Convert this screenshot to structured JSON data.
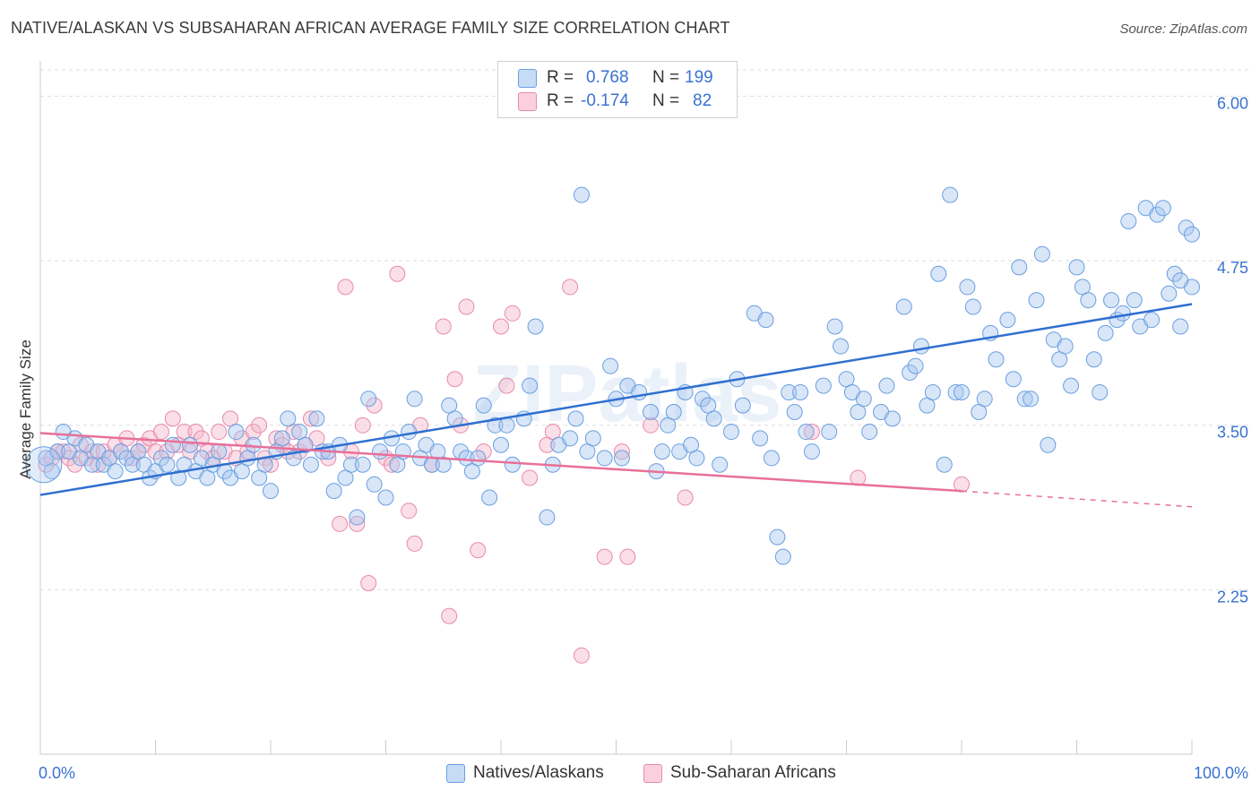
{
  "title": "NATIVE/ALASKAN VS SUBSAHARAN AFRICAN AVERAGE FAMILY SIZE CORRELATION CHART",
  "source": "Source: ZipAtlas.com",
  "watermark": "ZIPatlas",
  "legend": {
    "r_label": "R =",
    "n_label": "N =",
    "rows": [
      {
        "name": "Natives/Alaskans",
        "r": "0.768",
        "n": "199",
        "color": "#a8c8f0"
      },
      {
        "name": "Sub-Saharan Africans",
        "r": "-0.174",
        "n": "82",
        "color": "#f5b8cc"
      }
    ]
  },
  "colors": {
    "blue_fill": "#a8c8f0",
    "blue_stroke": "#6a9fe0",
    "blue_line": "#2f6fd0",
    "pink_fill": "#f5b8cc",
    "pink_stroke": "#e88aaa",
    "pink_line": "#e8709a",
    "axis_text": "#3a72d0",
    "grid": "#dddddd"
  },
  "chart_data": {
    "type": "scatter",
    "title": "NATIVE/ALASKAN VS SUBSAHARAN AFRICAN AVERAGE FAMILY SIZE CORRELATION CHART",
    "xlabel": "",
    "ylabel": "Average Family Size",
    "xlim": [
      0,
      100
    ],
    "ylim": [
      1.0,
      6.2
    ],
    "x_tick_labels": [
      "0.0%",
      "100.0%"
    ],
    "y_ticks": [
      2.25,
      3.5,
      4.75,
      6.0
    ],
    "y_tick_labels": [
      "2.25",
      "3.50",
      "4.75",
      "6.00"
    ],
    "grid": true,
    "legend_position": "bottom",
    "series": [
      {
        "name": "Natives/Alaskans",
        "r": 0.768,
        "n": 199,
        "trend": {
          "x": [
            0,
            100
          ],
          "y": [
            2.97,
            4.42
          ]
        },
        "points": [
          [
            0.5,
            3.25
          ],
          [
            1,
            3.15
          ],
          [
            1.5,
            3.3
          ],
          [
            2,
            3.45
          ],
          [
            2.5,
            3.3
          ],
          [
            3,
            3.4
          ],
          [
            3.5,
            3.25
          ],
          [
            4,
            3.35
          ],
          [
            4.5,
            3.2
          ],
          [
            5,
            3.3
          ],
          [
            5.5,
            3.2
          ],
          [
            6,
            3.25
          ],
          [
            6.5,
            3.15
          ],
          [
            7,
            3.3
          ],
          [
            7.5,
            3.25
          ],
          [
            8,
            3.2
          ],
          [
            8.5,
            3.3
          ],
          [
            9,
            3.2
          ],
          [
            9.5,
            3.1
          ],
          [
            10,
            3.15
          ],
          [
            10.5,
            3.25
          ],
          [
            11,
            3.2
          ],
          [
            11.5,
            3.35
          ],
          [
            12,
            3.1
          ],
          [
            12.5,
            3.2
          ],
          [
            13,
            3.35
          ],
          [
            13.5,
            3.15
          ],
          [
            14,
            3.25
          ],
          [
            14.5,
            3.1
          ],
          [
            15,
            3.2
          ],
          [
            15.5,
            3.3
          ],
          [
            16,
            3.15
          ],
          [
            16.5,
            3.1
          ],
          [
            17,
            3.45
          ],
          [
            17.5,
            3.15
          ],
          [
            18,
            3.25
          ],
          [
            18.5,
            3.35
          ],
          [
            19,
            3.1
          ],
          [
            19.5,
            3.2
          ],
          [
            20,
            3.0
          ],
          [
            20.5,
            3.3
          ],
          [
            21,
            3.4
          ],
          [
            21.5,
            3.55
          ],
          [
            22,
            3.25
          ],
          [
            22.5,
            3.45
          ],
          [
            23,
            3.35
          ],
          [
            23.5,
            3.2
          ],
          [
            24,
            3.55
          ],
          [
            24.5,
            3.3
          ],
          [
            25,
            3.3
          ],
          [
            25.5,
            3.0
          ],
          [
            26,
            3.35
          ],
          [
            26.5,
            3.1
          ],
          [
            27,
            3.2
          ],
          [
            27.5,
            2.8
          ],
          [
            28,
            3.2
          ],
          [
            28.5,
            3.7
          ],
          [
            29,
            3.05
          ],
          [
            29.5,
            3.3
          ],
          [
            30,
            2.95
          ],
          [
            30.5,
            3.4
          ],
          [
            31,
            3.2
          ],
          [
            31.5,
            3.3
          ],
          [
            32,
            3.45
          ],
          [
            32.5,
            3.7
          ],
          [
            33,
            3.25
          ],
          [
            33.5,
            3.35
          ],
          [
            34,
            3.2
          ],
          [
            34.5,
            3.3
          ],
          [
            35,
            3.2
          ],
          [
            35.5,
            3.65
          ],
          [
            36,
            3.55
          ],
          [
            36.5,
            3.3
          ],
          [
            37,
            3.25
          ],
          [
            37.5,
            3.15
          ],
          [
            38,
            3.25
          ],
          [
            38.5,
            3.65
          ],
          [
            39,
            2.95
          ],
          [
            39.5,
            3.5
          ],
          [
            40,
            3.35
          ],
          [
            40.5,
            3.5
          ],
          [
            41,
            3.2
          ],
          [
            42,
            3.55
          ],
          [
            42.5,
            3.8
          ],
          [
            43,
            4.25
          ],
          [
            44,
            2.8
          ],
          [
            44.5,
            3.2
          ],
          [
            45,
            3.35
          ],
          [
            46,
            3.4
          ],
          [
            46.5,
            3.55
          ],
          [
            47,
            5.25
          ],
          [
            47.5,
            3.3
          ],
          [
            48,
            3.4
          ],
          [
            49,
            3.25
          ],
          [
            49.5,
            3.95
          ],
          [
            50,
            3.7
          ],
          [
            50.5,
            3.25
          ],
          [
            51,
            3.8
          ],
          [
            52,
            3.75
          ],
          [
            53,
            3.6
          ],
          [
            53.5,
            3.15
          ],
          [
            54,
            3.3
          ],
          [
            54.5,
            3.5
          ],
          [
            55,
            3.6
          ],
          [
            55.5,
            3.3
          ],
          [
            56,
            3.75
          ],
          [
            56.5,
            3.35
          ],
          [
            57,
            3.25
          ],
          [
            57.5,
            3.7
          ],
          [
            58,
            3.65
          ],
          [
            58.5,
            3.55
          ],
          [
            59,
            3.2
          ],
          [
            60,
            3.45
          ],
          [
            60.5,
            3.85
          ],
          [
            61,
            3.65
          ],
          [
            62,
            4.35
          ],
          [
            62.5,
            3.4
          ],
          [
            63,
            4.3
          ],
          [
            63.5,
            3.25
          ],
          [
            64,
            2.65
          ],
          [
            64.5,
            2.5
          ],
          [
            65,
            3.75
          ],
          [
            65.5,
            3.6
          ],
          [
            66,
            3.75
          ],
          [
            66.5,
            3.45
          ],
          [
            67,
            3.3
          ],
          [
            68,
            3.8
          ],
          [
            68.5,
            3.45
          ],
          [
            69,
            4.25
          ],
          [
            69.5,
            4.1
          ],
          [
            70,
            3.85
          ],
          [
            70.5,
            3.75
          ],
          [
            71,
            3.6
          ],
          [
            71.5,
            3.7
          ],
          [
            72,
            3.45
          ],
          [
            73,
            3.6
          ],
          [
            73.5,
            3.8
          ],
          [
            74,
            3.55
          ],
          [
            75,
            4.4
          ],
          [
            75.5,
            3.9
          ],
          [
            76,
            3.95
          ],
          [
            76.5,
            4.1
          ],
          [
            77,
            3.65
          ],
          [
            77.5,
            3.75
          ],
          [
            78,
            4.65
          ],
          [
            78.5,
            3.2
          ],
          [
            79,
            5.25
          ],
          [
            79.5,
            3.75
          ],
          [
            80,
            3.75
          ],
          [
            80.5,
            4.55
          ],
          [
            81,
            4.4
          ],
          [
            81.5,
            3.6
          ],
          [
            82,
            3.7
          ],
          [
            82.5,
            4.2
          ],
          [
            83,
            4.0
          ],
          [
            84,
            4.3
          ],
          [
            84.5,
            3.85
          ],
          [
            85,
            4.7
          ],
          [
            85.5,
            3.7
          ],
          [
            86,
            3.7
          ],
          [
            86.5,
            4.45
          ],
          [
            87,
            4.8
          ],
          [
            87.5,
            3.35
          ],
          [
            88,
            4.15
          ],
          [
            88.5,
            4.0
          ],
          [
            89,
            4.1
          ],
          [
            89.5,
            3.8
          ],
          [
            90,
            4.7
          ],
          [
            90.5,
            4.55
          ],
          [
            91,
            4.45
          ],
          [
            91.5,
            4.0
          ],
          [
            92,
            3.75
          ],
          [
            92.5,
            4.2
          ],
          [
            93,
            4.45
          ],
          [
            93.5,
            4.3
          ],
          [
            94,
            4.35
          ],
          [
            94.5,
            5.05
          ],
          [
            95,
            4.45
          ],
          [
            95.5,
            4.25
          ],
          [
            96,
            5.15
          ],
          [
            96.5,
            4.3
          ],
          [
            97,
            5.1
          ],
          [
            97.5,
            5.15
          ],
          [
            98,
            4.5
          ],
          [
            98.5,
            4.65
          ],
          [
            99,
            4.25
          ],
          [
            99.5,
            5.0
          ],
          [
            100,
            4.55
          ],
          [
            100,
            4.95
          ],
          [
            99,
            4.6
          ]
        ]
      },
      {
        "name": "Sub-Saharan Africans",
        "r": -0.174,
        "n": 82,
        "trend": {
          "x": [
            0,
            80
          ],
          "y": [
            3.44,
            3.0
          ]
        },
        "trend_dashed": {
          "x": [
            80,
            100
          ],
          "y": [
            3.0,
            2.88
          ]
        },
        "points": [
          [
            0.5,
            3.2
          ],
          [
            1,
            3.25
          ],
          [
            1.5,
            3.3
          ],
          [
            2,
            3.3
          ],
          [
            2.5,
            3.25
          ],
          [
            3,
            3.2
          ],
          [
            3.5,
            3.35
          ],
          [
            4,
            3.25
          ],
          [
            4.5,
            3.3
          ],
          [
            5,
            3.2
          ],
          [
            5.5,
            3.3
          ],
          [
            6,
            3.25
          ],
          [
            6.5,
            3.35
          ],
          [
            7,
            3.3
          ],
          [
            7.5,
            3.4
          ],
          [
            8,
            3.25
          ],
          [
            8.5,
            3.3
          ],
          [
            9,
            3.35
          ],
          [
            9.5,
            3.4
          ],
          [
            10,
            3.3
          ],
          [
            10.5,
            3.45
          ],
          [
            11,
            3.3
          ],
          [
            11.5,
            3.55
          ],
          [
            12,
            3.35
          ],
          [
            12.5,
            3.45
          ],
          [
            13,
            3.3
          ],
          [
            13.5,
            3.45
          ],
          [
            14,
            3.4
          ],
          [
            14.5,
            3.3
          ],
          [
            15,
            3.25
          ],
          [
            15.5,
            3.45
          ],
          [
            16,
            3.3
          ],
          [
            16.5,
            3.55
          ],
          [
            17,
            3.25
          ],
          [
            17.5,
            3.4
          ],
          [
            18,
            3.3
          ],
          [
            18.5,
            3.45
          ],
          [
            19,
            3.5
          ],
          [
            19.5,
            3.25
          ],
          [
            20,
            3.2
          ],
          [
            20.5,
            3.4
          ],
          [
            21,
            3.35
          ],
          [
            21.5,
            3.3
          ],
          [
            22,
            3.45
          ],
          [
            22.5,
            3.3
          ],
          [
            23,
            3.35
          ],
          [
            23.5,
            3.55
          ],
          [
            24,
            3.4
          ],
          [
            25,
            3.25
          ],
          [
            26,
            2.75
          ],
          [
            26.5,
            4.55
          ],
          [
            27,
            3.3
          ],
          [
            27.5,
            2.75
          ],
          [
            28,
            3.5
          ],
          [
            28.5,
            2.3
          ],
          [
            29,
            3.65
          ],
          [
            30,
            3.25
          ],
          [
            30.5,
            3.2
          ],
          [
            31,
            4.65
          ],
          [
            32,
            2.85
          ],
          [
            32.5,
            2.6
          ],
          [
            33,
            3.5
          ],
          [
            34,
            3.2
          ],
          [
            35,
            4.25
          ],
          [
            35.5,
            2.05
          ],
          [
            36,
            3.85
          ],
          [
            36.5,
            3.5
          ],
          [
            37,
            4.4
          ],
          [
            38,
            2.55
          ],
          [
            38.5,
            3.3
          ],
          [
            40,
            4.25
          ],
          [
            40.5,
            3.8
          ],
          [
            41,
            4.35
          ],
          [
            42.5,
            3.1
          ],
          [
            44,
            3.35
          ],
          [
            44.5,
            3.45
          ],
          [
            46,
            4.55
          ],
          [
            47,
            1.75
          ],
          [
            49,
            2.5
          ],
          [
            50.5,
            3.3
          ],
          [
            51,
            2.5
          ],
          [
            53,
            3.5
          ],
          [
            56,
            2.95
          ],
          [
            67,
            3.45
          ],
          [
            71,
            3.1
          ],
          [
            80,
            3.05
          ]
        ]
      }
    ]
  }
}
